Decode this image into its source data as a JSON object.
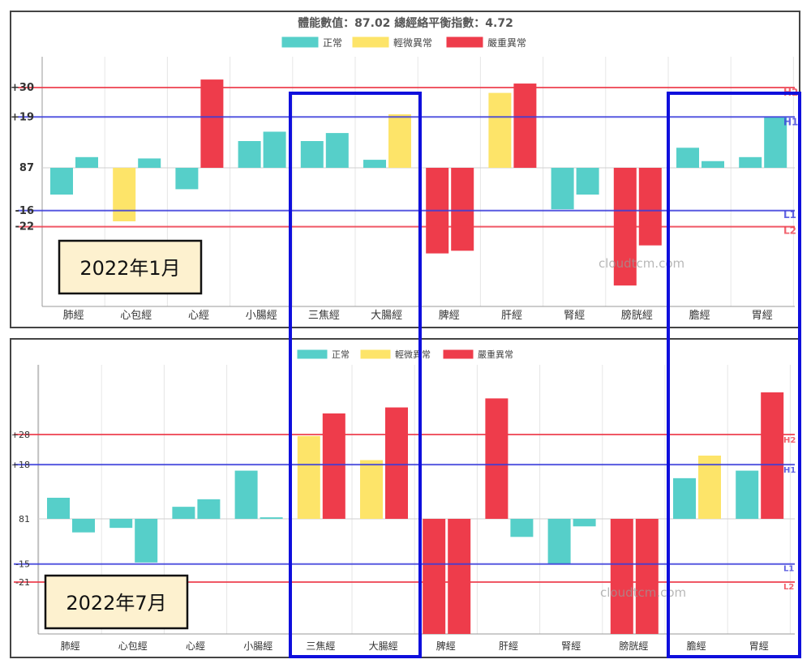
{
  "watermark": "cloudtcm.com",
  "legend": [
    {
      "label": "正常",
      "color": "#56cfc9"
    },
    {
      "label": "輕微異常",
      "color": "#fde469"
    },
    {
      "label": "嚴重異常",
      "color": "#ee3c4b"
    }
  ],
  "colors": {
    "normal": "#56cfc9",
    "mild": "#fde469",
    "severe": "#ee3c4b",
    "line_red": "#ee3c4b",
    "line_blue": "#3a3ddb",
    "highlight": "#0f0fdc"
  },
  "highlight_groups": [
    [
      "三焦經",
      "大腸經"
    ],
    [
      "膽經",
      "胃經"
    ]
  ],
  "chart_data": [
    {
      "type": "bar",
      "title": "體能數值：87.02 總經絡平衡指數：4.72",
      "date_label": "2022年1月",
      "categories": [
        "肺經",
        "心包經",
        "心經",
        "小腸經",
        "三焦經",
        "大腸經",
        "脾經",
        "肝經",
        "腎經",
        "膀胱經",
        "膽經",
        "胃經"
      ],
      "baseline": 87,
      "ref_lines": [
        {
          "value": 30,
          "label": "+30",
          "tag": "H2",
          "color": "red"
        },
        {
          "value": 19,
          "label": "+19",
          "tag": "H1",
          "color": "blue"
        },
        {
          "value": -16,
          "label": "-16",
          "tag": "L1",
          "color": "blue"
        },
        {
          "value": -22,
          "label": "-22",
          "tag": "L2",
          "color": "red"
        }
      ],
      "y_ticks": [
        {
          "value": 30,
          "label": "+30"
        },
        {
          "value": 19,
          "label": "+19"
        },
        {
          "value": 0,
          "label": "87"
        },
        {
          "value": -16,
          "label": "-16"
        },
        {
          "value": -22,
          "label": "-22"
        }
      ],
      "ylim": [
        -53,
        42
      ],
      "bars": [
        [
          {
            "v": -10,
            "s": "normal"
          },
          {
            "v": 4,
            "s": "normal"
          }
        ],
        [
          {
            "v": -20,
            "s": "mild"
          },
          {
            "v": 3.5,
            "s": "normal"
          }
        ],
        [
          {
            "v": -8,
            "s": "normal"
          },
          {
            "v": 33,
            "s": "severe"
          }
        ],
        [
          {
            "v": 10,
            "s": "normal"
          },
          {
            "v": 13.5,
            "s": "normal"
          }
        ],
        [
          {
            "v": 10,
            "s": "normal"
          },
          {
            "v": 13,
            "s": "normal"
          }
        ],
        [
          {
            "v": 3,
            "s": "normal"
          },
          {
            "v": 20,
            "s": "mild"
          }
        ],
        [
          {
            "v": -32,
            "s": "severe"
          },
          {
            "v": -31,
            "s": "severe"
          }
        ],
        [
          {
            "v": 28,
            "s": "mild"
          },
          {
            "v": 31.5,
            "s": "severe"
          }
        ],
        [
          {
            "v": -15.5,
            "s": "normal"
          },
          {
            "v": -10,
            "s": "normal"
          }
        ],
        [
          {
            "v": -44,
            "s": "severe"
          },
          {
            "v": -29,
            "s": "severe"
          }
        ],
        [
          {
            "v": 7.5,
            "s": "normal"
          },
          {
            "v": 2.5,
            "s": "normal"
          }
        ],
        [
          {
            "v": 4,
            "s": "normal"
          },
          {
            "v": 19,
            "s": "normal"
          }
        ]
      ]
    },
    {
      "type": "bar",
      "title": "",
      "date_label": "2022年7月",
      "categories": [
        "肺經",
        "心包經",
        "心經",
        "小腸經",
        "三焦經",
        "大腸經",
        "脾經",
        "肝經",
        "腎經",
        "膀胱經",
        "膽經",
        "胃經"
      ],
      "baseline": 81,
      "ref_lines": [
        {
          "value": 28,
          "label": "+28",
          "tag": "H2",
          "color": "red"
        },
        {
          "value": 18,
          "label": "+18",
          "tag": "H1",
          "color": "blue"
        },
        {
          "value": -15,
          "label": "-15",
          "tag": "L1",
          "color": "blue"
        },
        {
          "value": -21,
          "label": "-21",
          "tag": "L2",
          "color": "red"
        }
      ],
      "y_ticks": [
        {
          "value": 28,
          "label": "+28"
        },
        {
          "value": 18,
          "label": "+18"
        },
        {
          "value": 0,
          "label": "81"
        },
        {
          "value": -15,
          "label": "-15"
        },
        {
          "value": -21,
          "label": "-21"
        }
      ],
      "ylim": [
        -40,
        52
      ],
      "bars": [
        [
          {
            "v": 7,
            "s": "normal"
          },
          {
            "v": -4.5,
            "s": "normal"
          }
        ],
        [
          {
            "v": -3,
            "s": "normal"
          },
          {
            "v": -14.5,
            "s": "normal"
          }
        ],
        [
          {
            "v": 4,
            "s": "normal"
          },
          {
            "v": 6.5,
            "s": "normal"
          }
        ],
        [
          {
            "v": 16,
            "s": "normal"
          },
          {
            "v": 0.5,
            "s": "normal"
          }
        ],
        [
          {
            "v": 27.5,
            "s": "mild"
          },
          {
            "v": 35,
            "s": "severe"
          }
        ],
        [
          {
            "v": 19.5,
            "s": "mild"
          },
          {
            "v": 37,
            "s": "severe"
          }
        ],
        [
          {
            "v": -40,
            "s": "severe"
          },
          {
            "v": -40,
            "s": "severe"
          }
        ],
        [
          {
            "v": 40,
            "s": "severe"
          },
          {
            "v": -6,
            "s": "normal"
          }
        ],
        [
          {
            "v": -15,
            "s": "normal"
          },
          {
            "v": -2.5,
            "s": "normal"
          }
        ],
        [
          {
            "v": -40,
            "s": "severe"
          },
          {
            "v": -40,
            "s": "severe"
          }
        ],
        [
          {
            "v": 13.5,
            "s": "normal"
          },
          {
            "v": 21,
            "s": "mild"
          }
        ],
        [
          {
            "v": 16,
            "s": "normal"
          },
          {
            "v": 42,
            "s": "severe"
          }
        ]
      ]
    }
  ]
}
